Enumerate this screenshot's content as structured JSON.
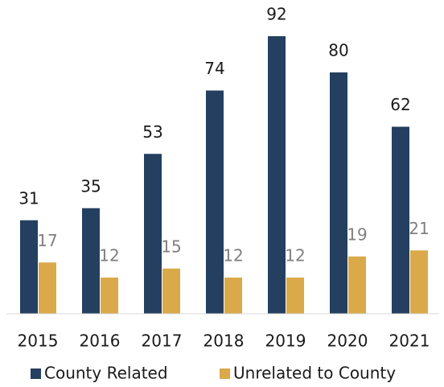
{
  "chart_data": {
    "type": "bar",
    "categories": [
      "2015",
      "2016",
      "2017",
      "2018",
      "2019",
      "2020",
      "2021"
    ],
    "series": [
      {
        "name": "County Related",
        "color": "#243f60",
        "values": [
          31,
          35,
          53,
          74,
          92,
          80,
          62
        ]
      },
      {
        "name": "Unrelated to County",
        "color": "#d9a94a",
        "values": [
          17,
          12,
          15,
          12,
          12,
          19,
          21
        ]
      }
    ],
    "legend": "bottom"
  }
}
